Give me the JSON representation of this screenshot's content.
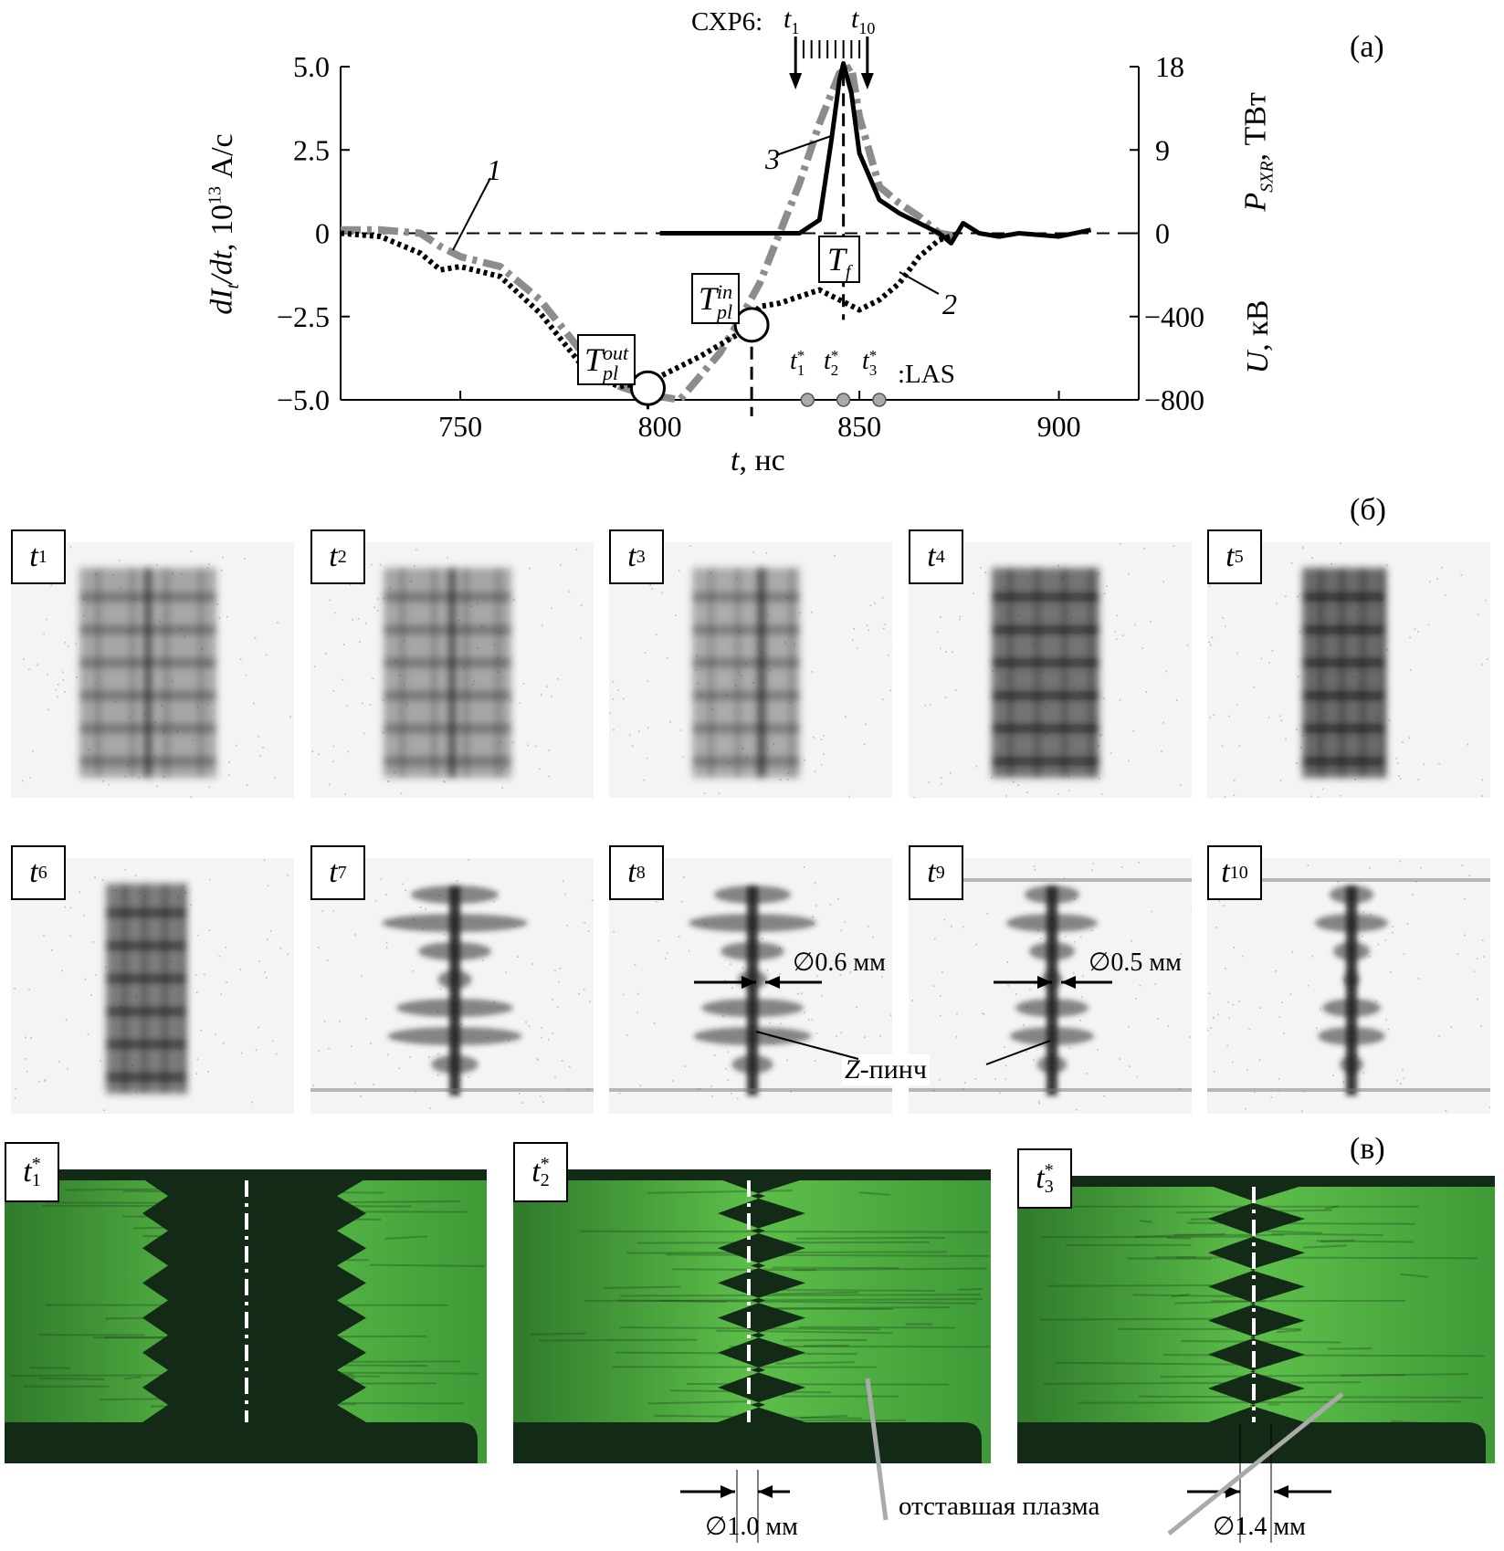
{
  "panel_a": {
    "label": "(а)",
    "cxp_label": "СХР6:",
    "cxp_t_first": "t1",
    "cxp_t_last": "t10",
    "y_left_label": "dI_t/dt, 10^13 А/с",
    "y_right_top_label": "P_SXR, ТВт",
    "y_right_bottom_label": "U, кВ",
    "x_label": "t, нс",
    "curve_labels": [
      "1",
      "2",
      "3"
    ],
    "markers": {
      "T_pl_out": "T_pl^out",
      "T_pl_in": "T_pl^in",
      "T_f": "T_f"
    },
    "las_label": ":LAS",
    "las_times": [
      "t1*",
      "t2*",
      "t3*"
    ]
  },
  "chart_data": {
    "type": "line",
    "xlabel": "t, нс",
    "ylabel_left": "dI_t/dt, 10^13 А/с",
    "ylabel_right_top": "P_SXR, ТВт",
    "ylabel_right_bottom": "U, кВ",
    "xlim": [
      720,
      920
    ],
    "ylim_left": [
      -5.0,
      5.0
    ],
    "x_ticks": [
      750,
      800,
      850,
      900
    ],
    "y_left_ticks": [
      "5.0",
      "2.5",
      "0",
      "−2.5",
      "−5.0"
    ],
    "y_right_top_ticks": [
      "18",
      "9",
      "0"
    ],
    "y_right_bottom_ticks": [
      "−400",
      "−800"
    ],
    "series": [
      {
        "name": "1",
        "style": "grey thick dash-dot",
        "color": "#8c8c8c",
        "x": [
          720,
          730,
          740,
          745,
          750,
          760,
          770,
          780,
          785,
          790,
          795,
          800,
          805,
          810,
          815,
          820,
          825,
          830,
          835,
          840,
          845,
          848,
          850,
          855,
          860,
          865,
          870,
          875
        ],
        "y": [
          0.1,
          0.1,
          0.0,
          -0.4,
          -0.7,
          -1.0,
          -2.0,
          -3.5,
          -4.2,
          -4.6,
          -4.8,
          -4.9,
          -5.0,
          -4.3,
          -3.6,
          -2.6,
          -1.5,
          0.0,
          1.5,
          3.3,
          4.8,
          5.0,
          3.5,
          1.4,
          0.9,
          0.5,
          0.0,
          -0.1
        ]
      },
      {
        "name": "2",
        "style": "black dotted",
        "color": "#000000",
        "x": [
          720,
          730,
          740,
          745,
          750,
          760,
          770,
          780,
          785,
          790,
          795,
          800,
          810,
          820,
          825,
          830,
          840,
          845,
          850,
          855,
          860,
          865,
          870,
          875
        ],
        "y": [
          0.0,
          -0.1,
          -0.6,
          -1.1,
          -1.0,
          -1.3,
          -2.4,
          -3.9,
          -4.4,
          -4.6,
          -4.5,
          -4.3,
          -3.7,
          -3.0,
          -2.2,
          -2.1,
          -1.7,
          -2.0,
          -2.3,
          -2.0,
          -1.5,
          -0.7,
          -0.2,
          0.0
        ]
      },
      {
        "name": "3",
        "style": "black solid",
        "color": "#000000",
        "x": [
          800,
          820,
          835,
          840,
          843,
          845,
          846,
          848,
          850,
          855,
          860,
          865,
          870,
          873,
          876,
          880,
          885,
          890,
          900,
          908
        ],
        "y": [
          0.0,
          0.0,
          0.0,
          0.4,
          2.8,
          4.6,
          5.1,
          4.2,
          2.4,
          1.0,
          0.6,
          0.3,
          0.0,
          -0.3,
          0.3,
          0.0,
          -0.1,
          0.0,
          -0.1,
          0.1
        ]
      }
    ]
  },
  "panel_b": {
    "label": "(б)",
    "frames": [
      "t1",
      "t2",
      "t3",
      "t4",
      "t5",
      "t6",
      "t7",
      "t8",
      "t9",
      "t10"
    ],
    "diameter_8": "∅0.6 мм",
    "diameter_9": "∅0.5 мм",
    "z_pinch": "Z-пинч"
  },
  "panel_c": {
    "label": "(в)",
    "frames": [
      "t1*",
      "t2*",
      "t3*"
    ],
    "diameter_2": "∅1.0 мм",
    "diameter_3": "∅1.4 мм",
    "lagging_plasma": "отставшая плазма"
  },
  "colors": {
    "green_bg": "#4fae3f",
    "dark_core": "#122a16",
    "grey_curve": "#8c8c8c"
  }
}
